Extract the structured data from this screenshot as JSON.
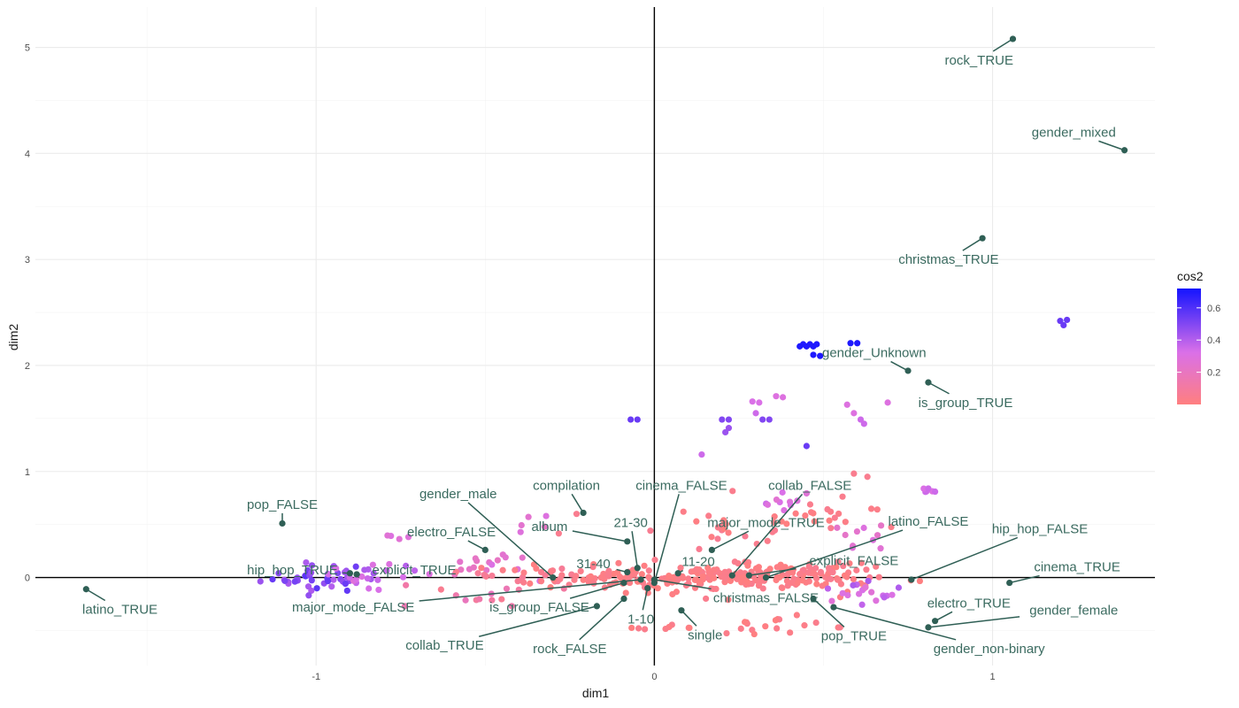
{
  "chart_data": {
    "type": "scatter",
    "xlabel": "dim1",
    "ylabel": "dim2",
    "xlim": [
      -1.83,
      1.48
    ],
    "ylim": [
      -0.83,
      5.38
    ],
    "x_ticks": [
      -1,
      0,
      1
    ],
    "x_tick_labels": [
      "-1",
      "0",
      "1"
    ],
    "y_ticks": [
      0,
      1,
      2,
      3,
      4,
      5
    ],
    "y_tick_labels": [
      "0",
      "1",
      "2",
      "3",
      "4",
      "5"
    ],
    "grid": true,
    "reference_lines": {
      "x": 0,
      "y": 0
    },
    "colors": {
      "low": "#ff7f7f",
      "mid": "#da70e8",
      "high": "#1414ff",
      "category": "#2f5f55",
      "category_text": "#3b6b60"
    },
    "legend": {
      "title": "cos2",
      "placement": "right",
      "ticks": [
        0.2,
        0.4,
        0.6
      ],
      "tick_labels": [
        "0.2",
        "0.4",
        "0.6"
      ],
      "range": [
        0.0,
        0.72
      ]
    },
    "series": [
      {
        "role": "individuals",
        "clusters": [
          {
            "center": [
              -1.0,
              0.0
            ],
            "spread": [
              0.08,
              0.07
            ],
            "n": 40,
            "cos2": [
              0.4,
              0.58
            ]
          },
          {
            "center": [
              -0.84,
              0.02
            ],
            "spread": [
              0.07,
              0.06
            ],
            "n": 22,
            "cos2": [
              0.25,
              0.45
            ]
          },
          {
            "center": [
              -0.78,
              0.38
            ],
            "spread": [
              0.02,
              0.03
            ],
            "n": 4,
            "cos2": [
              0.25,
              0.3
            ]
          },
          {
            "center": [
              -0.5,
              0.1
            ],
            "spread": [
              0.08,
              0.06
            ],
            "n": 16,
            "cos2": [
              0.2,
              0.32
            ]
          },
          {
            "center": [
              -0.35,
              0.55
            ],
            "spread": [
              0.05,
              0.05
            ],
            "n": 4,
            "cos2": [
              0.2,
              0.3
            ]
          },
          {
            "center": [
              -0.55,
              -0.2
            ],
            "spread": [
              0.12,
              0.05
            ],
            "n": 14,
            "cos2": [
              0.05,
              0.2
            ]
          },
          {
            "center": [
              -0.35,
              0.03
            ],
            "spread": [
              0.14,
              0.07
            ],
            "n": 28,
            "cos2": [
              0.0,
              0.08
            ]
          },
          {
            "center": [
              -0.1,
              0.0
            ],
            "spread": [
              0.1,
              0.06
            ],
            "n": 60,
            "cos2": [
              0.0,
              0.05
            ]
          },
          {
            "center": [
              0.1,
              0.0
            ],
            "spread": [
              0.12,
              0.06
            ],
            "n": 70,
            "cos2": [
              0.0,
              0.05
            ]
          },
          {
            "center": [
              0.3,
              0.0
            ],
            "spread": [
              0.14,
              0.07
            ],
            "n": 80,
            "cos2": [
              0.0,
              0.05
            ]
          },
          {
            "center": [
              0.5,
              0.02
            ],
            "spread": [
              0.12,
              0.07
            ],
            "n": 50,
            "cos2": [
              0.0,
              0.06
            ]
          },
          {
            "center": [
              0.35,
              -0.45
            ],
            "spread": [
              0.12,
              0.04
            ],
            "n": 20,
            "cos2": [
              0.0,
              0.05
            ]
          },
          {
            "center": [
              0.2,
              0.5
            ],
            "spread": [
              0.12,
              0.1
            ],
            "n": 24,
            "cos2": [
              0.0,
              0.06
            ]
          },
          {
            "center": [
              0.5,
              0.6
            ],
            "spread": [
              0.12,
              0.12
            ],
            "n": 18,
            "cos2": [
              0.0,
              0.06
            ]
          },
          {
            "center": [
              -0.05,
              -0.48
            ],
            "spread": [
              0.04,
              0.03
            ],
            "n": 6,
            "cos2": [
              0.0,
              0.05
            ]
          },
          {
            "center": [
              0.6,
              -0.15
            ],
            "spread": [
              0.08,
              0.06
            ],
            "n": 18,
            "cos2": [
              0.25,
              0.42
            ]
          },
          {
            "center": [
              0.8,
              0.82
            ],
            "spread": [
              0.02,
              0.02
            ],
            "n": 4,
            "cos2": [
              0.3,
              0.35
            ]
          },
          {
            "center": [
              0.6,
              0.4
            ],
            "spread": [
              0.06,
              0.06
            ],
            "n": 10,
            "cos2": [
              0.2,
              0.3
            ]
          },
          {
            "center": [
              0.35,
              0.7
            ],
            "spread": [
              0.06,
              0.06
            ],
            "n": 10,
            "cos2": [
              0.25,
              0.35
            ]
          }
        ],
        "points": [
          {
            "x": -0.07,
            "y": 1.49,
            "cos2": 0.55
          },
          {
            "x": -0.05,
            "y": 1.49,
            "cos2": 0.55
          },
          {
            "x": 0.2,
            "y": 1.49,
            "cos2": 0.5
          },
          {
            "x": 0.22,
            "y": 1.49,
            "cos2": 0.5
          },
          {
            "x": 0.21,
            "y": 1.37,
            "cos2": 0.45
          },
          {
            "x": 0.22,
            "y": 1.41,
            "cos2": 0.45
          },
          {
            "x": 0.32,
            "y": 1.49,
            "cos2": 0.5
          },
          {
            "x": 0.34,
            "y": 1.49,
            "cos2": 0.5
          },
          {
            "x": 0.3,
            "y": 1.55,
            "cos2": 0.35
          },
          {
            "x": 0.29,
            "y": 1.66,
            "cos2": 0.32
          },
          {
            "x": 0.31,
            "y": 1.65,
            "cos2": 0.32
          },
          {
            "x": 0.36,
            "y": 1.71,
            "cos2": 0.3
          },
          {
            "x": 0.38,
            "y": 1.7,
            "cos2": 0.3
          },
          {
            "x": 0.14,
            "y": 1.16,
            "cos2": 0.35
          },
          {
            "x": 0.45,
            "y": 1.24,
            "cos2": 0.55
          },
          {
            "x": 0.57,
            "y": 1.63,
            "cos2": 0.3
          },
          {
            "x": 0.59,
            "y": 1.55,
            "cos2": 0.3
          },
          {
            "x": 0.61,
            "y": 1.49,
            "cos2": 0.35
          },
          {
            "x": 0.62,
            "y": 1.45,
            "cos2": 0.35
          },
          {
            "x": 0.69,
            "y": 1.65,
            "cos2": 0.3
          },
          {
            "x": 0.43,
            "y": 2.18,
            "cos2": 0.7
          },
          {
            "x": 0.44,
            "y": 2.2,
            "cos2": 0.7
          },
          {
            "x": 0.45,
            "y": 2.18,
            "cos2": 0.7
          },
          {
            "x": 0.46,
            "y": 2.2,
            "cos2": 0.7
          },
          {
            "x": 0.47,
            "y": 2.18,
            "cos2": 0.7
          },
          {
            "x": 0.48,
            "y": 2.2,
            "cos2": 0.7
          },
          {
            "x": 0.47,
            "y": 2.1,
            "cos2": 0.7
          },
          {
            "x": 0.49,
            "y": 2.09,
            "cos2": 0.7
          },
          {
            "x": 0.58,
            "y": 2.21,
            "cos2": 0.7
          },
          {
            "x": 0.6,
            "y": 2.21,
            "cos2": 0.7
          },
          {
            "x": 1.2,
            "y": 2.42,
            "cos2": 0.55
          },
          {
            "x": 1.22,
            "y": 2.43,
            "cos2": 0.55
          },
          {
            "x": 1.21,
            "y": 2.38,
            "cos2": 0.55
          },
          {
            "x": 0.81,
            "y": 0.84,
            "cos2": 0.35
          },
          {
            "x": 0.83,
            "y": 0.81,
            "cos2": 0.35
          },
          {
            "x": 0.59,
            "y": 0.98,
            "cos2": 0.05
          },
          {
            "x": 0.63,
            "y": 0.95,
            "cos2": 0.05
          },
          {
            "x": -0.32,
            "y": 0.58,
            "cos2": 0.3
          },
          {
            "x": -0.23,
            "y": 0.6,
            "cos2": 0.05
          }
        ]
      },
      {
        "role": "categories",
        "points": [
          {
            "label": "rock_TRUE",
            "x": 1.06,
            "y": 5.08,
            "lx": 0.96,
            "ly": 4.88
          },
          {
            "label": "gender_mixed",
            "x": 1.39,
            "y": 4.03,
            "lx": 1.24,
            "ly": 4.2
          },
          {
            "label": "christmas_TRUE",
            "x": 0.97,
            "y": 3.2,
            "lx": 0.87,
            "ly": 3.0
          },
          {
            "label": "gender_Unknown",
            "x": 0.75,
            "y": 1.95,
            "lx": 0.65,
            "ly": 2.12
          },
          {
            "label": "is_group_TRUE",
            "x": 0.81,
            "y": 1.84,
            "lx": 0.92,
            "ly": 1.65
          },
          {
            "label": "pop_FALSE",
            "x": -1.1,
            "y": 0.51,
            "lx": -1.1,
            "ly": 0.69
          },
          {
            "label": "latino_TRUE",
            "x": -1.68,
            "y": -0.11,
            "lx": -1.58,
            "ly": -0.3
          },
          {
            "label": "compilation",
            "x": -0.21,
            "y": 0.61,
            "lx": -0.26,
            "ly": 0.87
          },
          {
            "label": "gender_male",
            "x": -0.3,
            "y": 0.0,
            "lx": -0.58,
            "ly": 0.79
          },
          {
            "label": "electro_FALSE",
            "x": -0.5,
            "y": 0.26,
            "lx": -0.6,
            "ly": 0.43
          },
          {
            "label": "album",
            "x": -0.08,
            "y": 0.34,
            "lx": -0.31,
            "ly": 0.48
          },
          {
            "label": "21-30",
            "x": -0.05,
            "y": 0.09,
            "lx": -0.07,
            "ly": 0.52
          },
          {
            "label": "31-40",
            "x": -0.08,
            "y": 0.05,
            "lx": -0.18,
            "ly": 0.13
          },
          {
            "label": "cinema_FALSE",
            "x": 0.0,
            "y": -0.05,
            "lx": 0.08,
            "ly": 0.87
          },
          {
            "label": "collab_FALSE",
            "x": 0.23,
            "y": 0.02,
            "lx": 0.46,
            "ly": 0.87
          },
          {
            "label": "major_mode_TRUE",
            "x": 0.17,
            "y": 0.26,
            "lx": 0.33,
            "ly": 0.52
          },
          {
            "label": "11-20",
            "x": 0.07,
            "y": 0.04,
            "lx": 0.13,
            "ly": 0.15
          },
          {
            "label": "latino_FALSE",
            "x": 0.33,
            "y": 0.0,
            "lx": 0.81,
            "ly": 0.53
          },
          {
            "label": "hip_hop_FALSE",
            "x": 0.76,
            "y": -0.02,
            "lx": 1.14,
            "ly": 0.46
          },
          {
            "label": "explicit_FALSE",
            "x": 0.28,
            "y": 0.02,
            "lx": 0.59,
            "ly": 0.16
          },
          {
            "label": "cinema_TRUE",
            "x": 1.05,
            "y": -0.05,
            "lx": 1.25,
            "ly": 0.1
          },
          {
            "label": "hip_hop_TRUE",
            "x": -0.9,
            "y": 0.04,
            "lx": -1.07,
            "ly": 0.07
          },
          {
            "label": "explicit_TRUE",
            "x": -0.88,
            "y": 0.03,
            "lx": -0.71,
            "ly": 0.07
          },
          {
            "label": "major_mode_FALSE",
            "x": -0.04,
            "y": -0.02,
            "lx": -0.89,
            "ly": -0.28
          },
          {
            "label": "is_group_FALSE",
            "x": -0.09,
            "y": -0.05,
            "lx": -0.34,
            "ly": -0.28
          },
          {
            "label": "christmas_FALSE",
            "x": 0.0,
            "y": -0.02,
            "lx": 0.33,
            "ly": -0.19
          },
          {
            "label": "1-10",
            "x": -0.02,
            "y": -0.1,
            "lx": -0.04,
            "ly": -0.39
          },
          {
            "label": "single",
            "x": 0.08,
            "y": -0.31,
            "lx": 0.15,
            "ly": -0.54
          },
          {
            "label": "collab_TRUE",
            "x": -0.17,
            "y": -0.27,
            "lx": -0.62,
            "ly": -0.64
          },
          {
            "label": "rock_FALSE",
            "x": -0.09,
            "y": -0.2,
            "lx": -0.25,
            "ly": -0.67
          },
          {
            "label": "pop_TRUE",
            "x": 0.47,
            "y": -0.2,
            "lx": 0.59,
            "ly": -0.55
          },
          {
            "label": "electro_TRUE",
            "x": 0.83,
            "y": -0.41,
            "lx": 0.93,
            "ly": -0.24
          },
          {
            "label": "gender_female",
            "x": 0.81,
            "y": -0.47,
            "lx": 1.24,
            "ly": -0.31
          },
          {
            "label": "gender_non-binary",
            "x": 0.53,
            "y": -0.28,
            "lx": 0.99,
            "ly": -0.67
          }
        ]
      }
    ]
  }
}
